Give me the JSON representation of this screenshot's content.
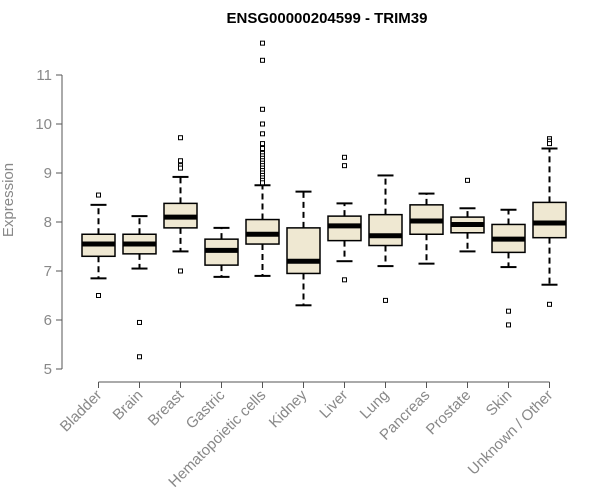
{
  "chart_data": {
    "type": "box",
    "title": "ENSG00000204599 - TRIM39",
    "ylabel": "Expression",
    "xlabel": "",
    "ylim": [
      5,
      12
    ],
    "yticks": [
      5,
      6,
      7,
      8,
      9,
      10,
      11
    ],
    "grid": false,
    "legend": "none",
    "colors": {
      "box_fill": "#efe8d2",
      "box_stroke": "#000000",
      "axis": "#555555"
    },
    "categories": [
      "Bladder",
      "Brain",
      "Breast",
      "Gastric",
      "Hematopoietic cells",
      "Kidney",
      "Liver",
      "Lung",
      "Pancreas",
      "Prostate",
      "Skin",
      "Unknown / Other"
    ],
    "boxes": [
      {
        "whisker_low": 6.85,
        "q1": 7.3,
        "median": 7.55,
        "q3": 7.75,
        "whisker_high": 8.35,
        "outliers": [
          8.55,
          6.5
        ]
      },
      {
        "whisker_low": 7.05,
        "q1": 7.35,
        "median": 7.55,
        "q3": 7.75,
        "whisker_high": 8.12,
        "outliers": [
          5.95,
          5.25
        ]
      },
      {
        "whisker_low": 7.4,
        "q1": 7.88,
        "median": 8.1,
        "q3": 8.38,
        "whisker_high": 8.92,
        "outliers": [
          9.72,
          9.25,
          9.15,
          9.1,
          7.0
        ]
      },
      {
        "whisker_low": 6.88,
        "q1": 7.12,
        "median": 7.42,
        "q3": 7.65,
        "whisker_high": 7.88,
        "outliers": []
      },
      {
        "whisker_low": 6.9,
        "q1": 7.55,
        "median": 7.75,
        "q3": 8.05,
        "whisker_high": 8.75,
        "outliers": [
          11.65,
          11.3,
          10.3,
          10.0,
          9.8,
          9.6,
          9.5,
          9.4,
          9.35,
          9.3,
          9.25,
          9.2,
          9.15,
          9.1,
          9.05,
          9.0,
          8.95,
          8.9,
          8.85,
          8.8
        ]
      },
      {
        "whisker_low": 6.3,
        "q1": 6.95,
        "median": 7.2,
        "q3": 7.88,
        "whisker_high": 8.62,
        "outliers": []
      },
      {
        "whisker_low": 7.2,
        "q1": 7.62,
        "median": 7.92,
        "q3": 8.12,
        "whisker_high": 8.38,
        "outliers": [
          9.32,
          9.15,
          6.82
        ]
      },
      {
        "whisker_low": 7.1,
        "q1": 7.52,
        "median": 7.72,
        "q3": 8.15,
        "whisker_high": 8.95,
        "outliers": [
          6.4
        ]
      },
      {
        "whisker_low": 7.15,
        "q1": 7.75,
        "median": 8.02,
        "q3": 8.35,
        "whisker_high": 8.58,
        "outliers": []
      },
      {
        "whisker_low": 7.4,
        "q1": 7.78,
        "median": 7.95,
        "q3": 8.1,
        "whisker_high": 8.28,
        "outliers": [
          8.85
        ]
      },
      {
        "whisker_low": 7.08,
        "q1": 7.38,
        "median": 7.65,
        "q3": 7.95,
        "whisker_high": 8.25,
        "outliers": [
          6.18,
          5.9
        ]
      },
      {
        "whisker_low": 6.72,
        "q1": 7.68,
        "median": 7.98,
        "q3": 8.4,
        "whisker_high": 9.5,
        "outliers": [
          9.7,
          9.65,
          9.6,
          6.32
        ]
      }
    ]
  }
}
